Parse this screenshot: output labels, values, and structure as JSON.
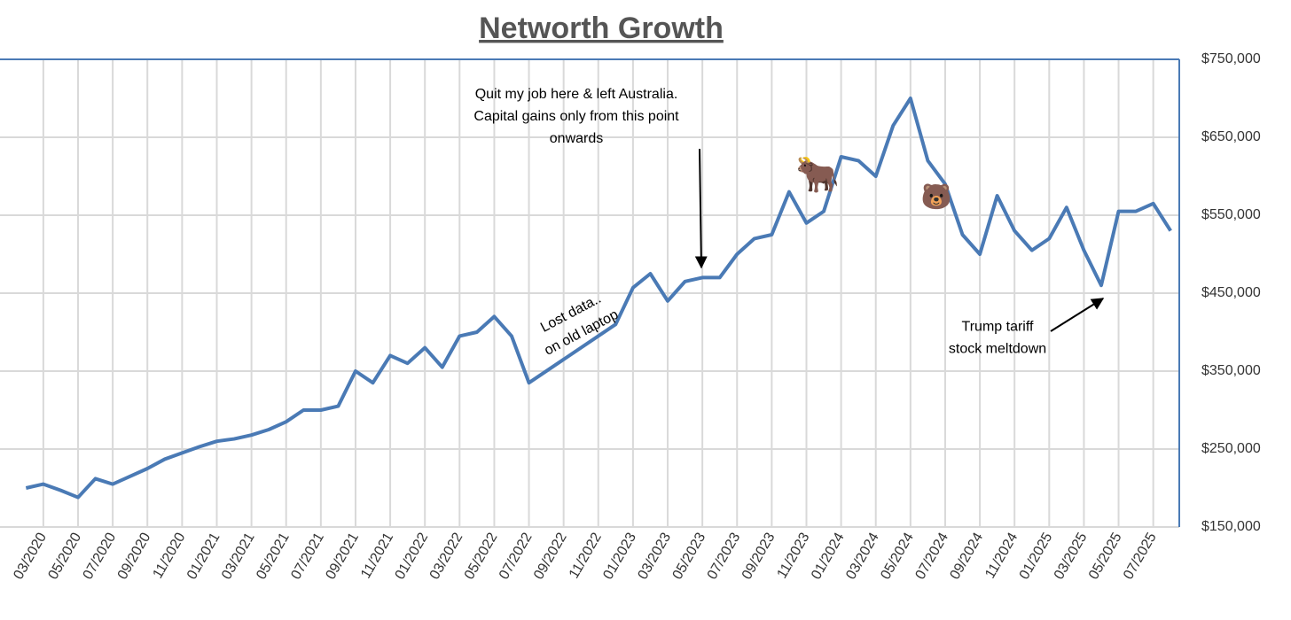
{
  "chart_data": {
    "type": "line",
    "title": "Networth Growth",
    "x": [
      "02/2020",
      "03/2020",
      "04/2020",
      "05/2020",
      "06/2020",
      "07/2020",
      "08/2020",
      "09/2020",
      "10/2020",
      "11/2020",
      "12/2020",
      "01/2021",
      "02/2021",
      "03/2021",
      "04/2021",
      "05/2021",
      "06/2021",
      "07/2021",
      "08/2021",
      "09/2021",
      "10/2021",
      "11/2021",
      "12/2021",
      "01/2022",
      "02/2022",
      "03/2022",
      "04/2022",
      "05/2022",
      "06/2022",
      "07/2022",
      "12/2022",
      "01/2023",
      "02/2023",
      "03/2023",
      "04/2023",
      "05/2023",
      "06/2023",
      "07/2023",
      "08/2023",
      "09/2023",
      "10/2023",
      "11/2023",
      "12/2023",
      "01/2024",
      "02/2024",
      "03/2024",
      "04/2024",
      "05/2024",
      "06/2024",
      "07/2024",
      "08/2024",
      "09/2024",
      "10/2024",
      "11/2024",
      "12/2024",
      "01/2025",
      "02/2025",
      "03/2025",
      "04/2025",
      "05/2025",
      "06/2025",
      "07/2025",
      "08/2025"
    ],
    "series": [
      {
        "name": "Networth",
        "color": "#4a7ab5",
        "values": [
          200000,
          205000,
          197000,
          188000,
          212000,
          205000,
          215000,
          225000,
          237000,
          245000,
          253000,
          260000,
          263000,
          268000,
          275000,
          285000,
          300000,
          300000,
          305000,
          350000,
          335000,
          370000,
          360000,
          380000,
          355000,
          395000,
          400000,
          420000,
          395000,
          335000,
          410000,
          457000,
          475000,
          440000,
          465000,
          470000,
          470000,
          500000,
          520000,
          525000,
          580000,
          540000,
          555000,
          625000,
          620000,
          600000,
          665000,
          700000,
          620000,
          590000,
          525000,
          500000,
          575000,
          530000,
          505000,
          520000,
          560000,
          505000,
          460000,
          555000,
          555000,
          565000,
          530000
        ]
      }
    ],
    "xlim": [
      "01/2020",
      "08/2025"
    ],
    "xticks": [
      "03/2020",
      "05/2020",
      "07/2020",
      "09/2020",
      "11/2020",
      "01/2021",
      "03/2021",
      "05/2021",
      "07/2021",
      "09/2021",
      "11/2021",
      "01/2022",
      "03/2022",
      "05/2022",
      "07/2022",
      "09/2022",
      "11/2022",
      "01/2023",
      "03/2023",
      "05/2023",
      "07/2023",
      "09/2023",
      "11/2023",
      "01/2024",
      "03/2024",
      "05/2024",
      "07/2024",
      "09/2024",
      "11/2024",
      "01/2025",
      "03/2025",
      "05/2025",
      "07/2025"
    ],
    "ylim": [
      150000,
      750000
    ],
    "yticks": [
      {
        "value": 150000,
        "label": "$150,000"
      },
      {
        "value": 250000,
        "label": "$250,000"
      },
      {
        "value": 350000,
        "label": "$350,000"
      },
      {
        "value": 450000,
        "label": "$450,000"
      },
      {
        "value": 550000,
        "label": "$550,000"
      },
      {
        "value": 650000,
        "label": "$650,000"
      },
      {
        "value": 750000,
        "label": "$750,000"
      }
    ],
    "grid": true,
    "annotations": [
      {
        "lines": [
          "Quit my job here & left Australia.",
          "Capital gains only from this point",
          "onwards"
        ]
      },
      {
        "lines": [
          "Lost data..",
          "on old laptop"
        ]
      },
      {
        "lines": [
          "Trump tariff",
          "stock meltdown"
        ]
      },
      {
        "lines": [
          "🐂"
        ]
      },
      {
        "lines": [
          "🐻"
        ]
      }
    ]
  }
}
